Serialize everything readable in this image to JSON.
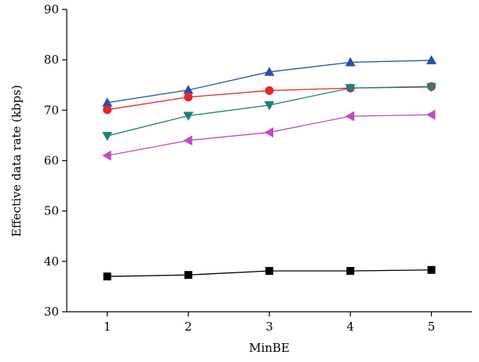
{
  "chart_data": {
    "type": "line",
    "title": "",
    "xlabel": "MinBE",
    "ylabel": "Effective data rate (kbps)",
    "x": [
      1,
      2,
      3,
      4,
      5
    ],
    "xlim": [
      0.5,
      5.5
    ],
    "ylim": [
      30,
      90
    ],
    "xticks": [
      "1",
      "2",
      "3",
      "4",
      "5"
    ],
    "yticks": [
      "30",
      "40",
      "50",
      "60",
      "70",
      "80",
      "90"
    ],
    "grid": false,
    "legend": "none",
    "series": [
      {
        "color": "#2c4fa3",
        "marker": "triangle-up",
        "values": [
          71.5,
          74.0,
          77.6,
          79.5,
          79.9
        ]
      },
      {
        "color": "#e8252a",
        "marker": "circle",
        "values": [
          70.1,
          72.6,
          73.9,
          74.4,
          74.7
        ]
      },
      {
        "color": "#1f8077",
        "marker": "triangle-down",
        "values": [
          64.9,
          68.9,
          71.0,
          74.4,
          74.6
        ]
      },
      {
        "color": "#c04cb8",
        "marker": "triangle-left",
        "values": [
          61.0,
          64.0,
          65.6,
          68.8,
          69.1
        ]
      },
      {
        "color": "#000000",
        "marker": "square",
        "values": [
          37.0,
          37.3,
          38.1,
          38.1,
          38.3
        ]
      }
    ]
  }
}
